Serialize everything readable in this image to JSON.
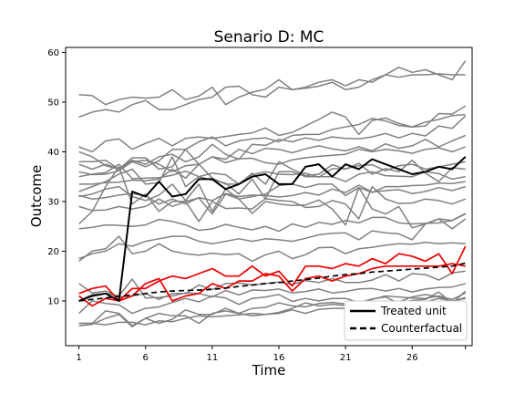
{
  "colors": {
    "control": "#808080",
    "treated": "#000000",
    "counterfactual": "#000000",
    "highlight": "#ee0000",
    "background": "#ffffff"
  },
  "chart_data": {
    "type": "line",
    "title": "Senario D: MC",
    "xlabel": "Time",
    "ylabel": "Outcome",
    "xlim": [
      0.0,
      30.5
    ],
    "ylim": [
      1,
      61
    ],
    "xticks": [
      1,
      6,
      11,
      16,
      21,
      26
    ],
    "yticks": [
      10,
      20,
      30,
      40,
      50,
      60
    ],
    "grid": false,
    "legend": {
      "position": "lower-right"
    },
    "x": [
      1,
      2,
      3,
      4,
      5,
      6,
      7,
      8,
      9,
      10,
      11,
      12,
      13,
      14,
      15,
      16,
      17,
      18,
      19,
      20,
      21,
      22,
      23,
      24,
      25,
      26,
      27,
      28,
      29,
      30
    ],
    "series": [
      {
        "name": "Treated unit",
        "style": "treated",
        "values": [
          10,
          11,
          11.5,
          10,
          32,
          31,
          34,
          31,
          31.5,
          34.5,
          34.5,
          32.5,
          33.5,
          35,
          35.5,
          33.5,
          33.5,
          37,
          37.5,
          35,
          37.5,
          36.5,
          38.5,
          37.5,
          36.5,
          35.5,
          36,
          37,
          36.5,
          39
        ]
      },
      {
        "name": "Counterfactual",
        "style": "counterfactual",
        "values": [
          10,
          10.3,
          10.6,
          10.9,
          11.2,
          11.5,
          11.8,
          12,
          12.1,
          12.2,
          12.3,
          12.6,
          12.9,
          13.2,
          13.5,
          13.7,
          14,
          14.3,
          14.6,
          15,
          15.3,
          15.5,
          15.8,
          16,
          16.2,
          16.4,
          16.6,
          16.8,
          17,
          17.6
        ]
      },
      {
        "style": "highlight",
        "values": [
          11,
          9,
          10.5,
          10,
          12.5,
          12.5,
          14,
          15,
          14.5,
          15.5,
          16.5,
          15,
          15,
          17,
          15,
          16,
          13,
          17,
          17,
          16.5,
          17.5,
          17,
          18.5,
          17.5,
          19.5,
          19,
          18,
          19.5,
          15.5,
          21
        ]
      },
      {
        "style": "highlight",
        "values": [
          11.5,
          12.5,
          13,
          10,
          11,
          13.5,
          14.5,
          10,
          11,
          11.5,
          13.5,
          12.5,
          14,
          14,
          15.5,
          15,
          12,
          14.5,
          15,
          14,
          15,
          15.5,
          16.5,
          17,
          17,
          17,
          17,
          17,
          17.5,
          17
        ]
      },
      {
        "style": "control",
        "values": [
          51.5,
          51.3,
          49.5,
          50.5,
          51,
          50.8,
          51,
          52.5,
          50.5,
          51.2,
          53,
          49.5,
          51,
          52,
          52.6,
          54.5,
          52.5,
          52.8,
          53.2,
          54,
          52.5,
          53,
          54.5,
          55.5,
          57,
          56,
          56.5,
          55.5,
          54.5,
          58.3
        ]
      },
      {
        "style": "control",
        "values": [
          47,
          48,
          48.5,
          48,
          49.5,
          50.3,
          48.5,
          48.5,
          49.5,
          50.5,
          51,
          53,
          53.2,
          51.5,
          51,
          53,
          52.5,
          53,
          54,
          54.5,
          53.3,
          54.5,
          54,
          55.5,
          55,
          55.5,
          55.5,
          55.7,
          55.5,
          55.5
        ]
      },
      {
        "style": "control",
        "values": [
          41,
          40,
          42.2,
          42.6,
          40.5,
          41.7,
          42.7,
          41.2,
          42.7,
          43,
          42.7,
          43.1,
          43.5,
          43.8,
          44.8,
          43.3,
          43.9,
          45.2,
          46.5,
          48,
          47,
          43.5,
          46.3,
          46.8,
          45.7,
          45,
          45.2,
          47.7,
          47.6,
          49.2
        ]
      },
      {
        "style": "control",
        "values": [
          40,
          39,
          37.2,
          36.5,
          38,
          37,
          38.2,
          40.5,
          40.5,
          42,
          43,
          41.2,
          42.2,
          42.6,
          42.8,
          42,
          43.3,
          43.5,
          43.5,
          44.5,
          45,
          45.5,
          46.7,
          46.2,
          45.3,
          45,
          46,
          46.5,
          47.3,
          47.5
        ]
      },
      {
        "style": "control",
        "values": [
          38,
          38,
          38.3,
          36.5,
          38.3,
          37.5,
          39,
          39.5,
          38,
          39,
          41.5,
          39.5,
          38.5,
          41.5,
          41.3,
          42.5,
          42,
          42.8,
          42.3,
          43,
          42.7,
          42.6,
          43,
          43.7,
          42.8,
          43.7,
          43.2,
          45.2,
          44.7,
          47.2
        ]
      },
      {
        "style": "control",
        "values": [
          37.5,
          36.5,
          37.5,
          36.5,
          38.8,
          38.8,
          36.5,
          37,
          40.5,
          37.5,
          39,
          38.5,
          40.5,
          39.6,
          40.7,
          40.5,
          39.8,
          40.6,
          41.2,
          40.6,
          40.2,
          41,
          40.2,
          41.6,
          40.7,
          41.2,
          42.5,
          41,
          42.2,
          43.3
        ]
      },
      {
        "style": "control",
        "values": [
          36,
          35.4,
          35.5,
          36.2,
          38,
          38.3,
          37.5,
          36,
          37.2,
          37.5,
          39,
          37.8,
          38.6,
          38.7,
          37.8,
          37.5,
          38.4,
          38.8,
          39.1,
          39.3,
          39.5,
          40.5,
          40,
          40.5,
          40.2,
          39.7,
          40.5,
          40.8,
          40,
          41
        ]
      },
      {
        "style": "control",
        "values": [
          35,
          35.5,
          35.8,
          37.5,
          34.6,
          34.7,
          34.8,
          35.3,
          36.1,
          35,
          35.7,
          35.4,
          33.5,
          35.4,
          36,
          35.5,
          35.4,
          35.7,
          34.9,
          36.6,
          36.6,
          37.2,
          37.4,
          36.2,
          37.2,
          37.5,
          36.5,
          37,
          37.5,
          38
        ]
      },
      {
        "style": "control",
        "values": [
          33.5,
          33.5,
          33.8,
          33.9,
          34.3,
          34.2,
          34.5,
          36.5,
          34.7,
          37.5,
          34.7,
          33.5,
          33.5,
          35.7,
          33.5,
          38,
          36.5,
          35.2,
          35.5,
          37.4,
          36.5,
          37.7,
          35.5,
          36.6,
          36,
          38.3,
          35.7,
          34,
          36.8,
          36.5
        ]
      },
      {
        "style": "control",
        "values": [
          32,
          33,
          34,
          35.5,
          36.5,
          33.5,
          33.8,
          39,
          33,
          35,
          34.3,
          33.7,
          31.5,
          34.5,
          30.5,
          36,
          36,
          35,
          35,
          35,
          34,
          35.5,
          36,
          35.2,
          35.1,
          35,
          36,
          35.6,
          34.5,
          35
        ]
      },
      {
        "style": "control",
        "values": [
          31,
          31.5,
          32.5,
          33,
          31,
          30.2,
          31.3,
          33.5,
          30.2,
          33.5,
          28,
          32.5,
          30.5,
          31,
          31.5,
          33.2,
          33.5,
          32.8,
          33.5,
          33.5,
          31.2,
          32.8,
          31.8,
          33,
          33,
          33.2,
          33.3,
          33.7,
          33.6,
          34
        ]
      },
      {
        "style": "control",
        "values": [
          31.2,
          30.5,
          30.8,
          31.3,
          31.6,
          31.2,
          29.5,
          30.5,
          29.5,
          30.8,
          30.2,
          31.6,
          31,
          31.3,
          31.2,
          30.9,
          31.2,
          31.8,
          31.3,
          32.5,
          31.8,
          33.3,
          31.9,
          32.2,
          32.4,
          31.6,
          32,
          32.8,
          32.2,
          33
        ]
      },
      {
        "style": "control",
        "values": [
          29,
          28.2,
          28.3,
          29,
          28.5,
          29,
          30.5,
          29,
          30,
          26,
          30,
          28.6,
          28.7,
          28.5,
          30.6,
          30.2,
          30,
          28.8,
          29,
          30.2,
          29.5,
          26.5,
          33,
          30.5,
          29.6,
          29.7,
          30.5,
          30.2,
          29.5,
          30.5
        ]
      },
      {
        "style": "control",
        "values": [
          25.5,
          28,
          33,
          37,
          29.5,
          31.5,
          28,
          30,
          30,
          30.7,
          27.5,
          31.5,
          30.5,
          27.6,
          30,
          29.5,
          29.2,
          29.3,
          30.3,
          28.5,
          25.3,
          32.8,
          28.5,
          27.5,
          29,
          24.7,
          25.5,
          26.5,
          24.5,
          26.5
        ]
      },
      {
        "style": "control",
        "values": [
          24.5,
          24.8,
          25.3,
          25.2,
          25,
          25.3,
          26.4,
          26,
          25.3,
          24.2,
          24.5,
          25.4,
          24.8,
          24.3,
          25,
          24,
          25.5,
          24.8,
          25.8,
          25.4,
          26.2,
          25.7,
          26.8,
          26.8,
          25.7,
          25.5,
          25.6,
          25.7,
          26.2,
          27.5
        ]
      },
      {
        "style": "control",
        "values": [
          18.5,
          19.5,
          20,
          21.5,
          21,
          22,
          22.5,
          23,
          23,
          22,
          21.5,
          22,
          22.5,
          22,
          22.5,
          22.3,
          22,
          22.6,
          23.3,
          23.6,
          23.7,
          22.3,
          24.1,
          23.7,
          23.5,
          22.3,
          25.5,
          26.5,
          26.2,
          27.6
        ]
      },
      {
        "style": "control",
        "values": [
          18,
          20,
          20.5,
          23,
          19.5,
          20,
          21.5,
          20,
          19.5,
          19.2,
          19.6,
          19.3,
          19.5,
          18,
          19.3,
          20,
          18.5,
          19.3,
          20.7,
          20.8,
          19.5,
          20.5,
          20.8,
          21.2,
          21.5,
          21.4,
          21.8,
          21.5,
          21.7,
          21.5
        ]
      },
      {
        "style": "control",
        "values": [
          13.5,
          11.6,
          12,
          10.8,
          11,
          11.5,
          10.3,
          11.5,
          11.5,
          13.2,
          12.3,
          13.5,
          13.6,
          13.2,
          13.5,
          13.8,
          13.3,
          14.1,
          13.7,
          14.5,
          13.7,
          13.7,
          14.2,
          15.3,
          14,
          15.5,
          15.3,
          14.2,
          15.6,
          16
        ]
      },
      {
        "style": "control",
        "values": [
          10,
          11.3,
          11.5,
          11,
          14.4,
          10.6,
          10.7,
          11,
          11.6,
          11.5,
          10.8,
          12.1,
          11.2,
          12.2,
          12.1,
          12.4,
          11.6,
          11.9,
          12.4,
          11.6,
          11.9,
          12.4,
          12.5,
          12,
          12.5,
          11.8,
          12.4,
          12.7,
          12.8,
          13.5
        ]
      },
      {
        "style": "control",
        "values": [
          7.5,
          10,
          9.5,
          9.2,
          7.5,
          8.5,
          8.8,
          9.7,
          10.5,
          9.8,
          11,
          10.6,
          9.3,
          10.5,
          10.8,
          11.3,
          9.9,
          10.5,
          10,
          10.5,
          10.5,
          9.7,
          10.4,
          10.8,
          9.5,
          10.1,
          10.3,
          11.8,
          9.5,
          12
        ]
      },
      {
        "style": "control",
        "values": [
          5.5,
          5.5,
          8,
          7.5,
          5,
          6.5,
          7.5,
          7,
          7,
          5.5,
          7.5,
          8,
          7.5,
          8.5,
          8.7,
          9.6,
          9,
          8.8,
          9.5,
          9.7,
          9.4,
          9.5,
          10.3,
          11,
          10.8,
          10.6,
          10.5,
          11,
          10.3,
          11.6
        ]
      },
      {
        "style": "control",
        "values": [
          5,
          5.3,
          6.5,
          7.3,
          4.8,
          6.5,
          5.5,
          6.3,
          8.2,
          7.3,
          7.3,
          8.5,
          7.5,
          7,
          7.3,
          7.7,
          8.5,
          9.6,
          9,
          9.3,
          9.1,
          9.5,
          9.5,
          9.4,
          9.8,
          10.8,
          11.3,
          10.8,
          9.8,
          10.7
        ]
      },
      {
        "style": "control",
        "values": [
          5.5,
          5.5,
          5.2,
          5.7,
          5.7,
          5.2,
          6,
          5.8,
          6.5,
          7,
          6.8,
          7,
          7.2,
          7.5,
          7.3,
          7.5,
          8.2,
          7.5,
          8.3,
          8.5,
          8.5,
          8.8,
          8.8,
          9.2,
          9.3,
          9.6,
          9.8,
          10.5,
          10,
          10.5
        ]
      }
    ]
  }
}
